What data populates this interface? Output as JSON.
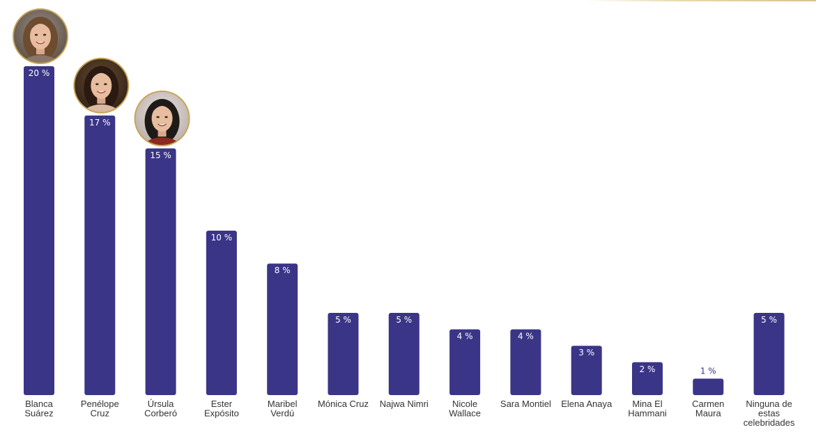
{
  "chart_data": {
    "type": "bar",
    "categories": [
      [
        "Blanca",
        "Suárez"
      ],
      [
        "Penélope",
        "Cruz"
      ],
      [
        "Úrsula",
        "Corberó"
      ],
      [
        "Ester",
        "Expósito"
      ],
      [
        "Maribel",
        "Verdú"
      ],
      [
        "Mónica Cruz"
      ],
      [
        "Najwa Nimri"
      ],
      [
        "Nicole",
        "Wallace"
      ],
      [
        "Sara Montiel"
      ],
      [
        "Elena Anaya"
      ],
      [
        "Mina El",
        "Hammani"
      ],
      [
        "Carmen",
        "Maura"
      ],
      [
        "Ninguna de",
        "estas",
        "celebridades"
      ]
    ],
    "values": [
      20,
      17,
      15,
      10,
      8,
      5,
      5,
      4,
      4,
      3,
      2,
      1,
      5
    ],
    "data_labels": [
      "20 %",
      "17 %",
      "15 %",
      "10 %",
      "8 %",
      "5 %",
      "5 %",
      "4 %",
      "4 %",
      "3 %",
      "2 %",
      "1 %",
      "5 %"
    ],
    "photos_on_top_three": true,
    "ylim": [
      0,
      20
    ],
    "grid": false,
    "title": "",
    "xlabel": "",
    "ylabel": ""
  },
  "colors": {
    "bar": "#3b3587",
    "label_on_bar": "#ffffff",
    "label_above_bar": "#3b3587",
    "category_text": "#333333",
    "photo_ring": "#c8a554"
  }
}
